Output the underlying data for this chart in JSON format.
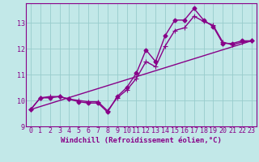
{
  "xlabel": "Windchill (Refroidissement éolien,°C)",
  "bg_color": "#c2e8e8",
  "line_color": "#880088",
  "grid_color": "#98cccc",
  "ylim": [
    9.0,
    13.75
  ],
  "xlim": [
    -0.5,
    23.5
  ],
  "yticks": [
    9,
    10,
    11,
    12,
    13
  ],
  "xticks": [
    0,
    1,
    2,
    3,
    4,
    5,
    6,
    7,
    8,
    9,
    10,
    11,
    12,
    13,
    14,
    15,
    16,
    17,
    18,
    19,
    20,
    21,
    22,
    23
  ],
  "series1_x": [
    0,
    1,
    2,
    3,
    4,
    5,
    6,
    7,
    8,
    9,
    10,
    11,
    12,
    13,
    14,
    15,
    16,
    17,
    18,
    19,
    20,
    21,
    22,
    23
  ],
  "series1_y": [
    9.65,
    10.1,
    10.1,
    10.15,
    10.05,
    9.95,
    9.9,
    9.9,
    9.55,
    10.15,
    10.5,
    11.05,
    11.95,
    11.5,
    12.5,
    13.1,
    13.1,
    13.55,
    13.1,
    12.85,
    12.2,
    12.2,
    12.3,
    12.3
  ],
  "series2_x": [
    0,
    1,
    2,
    3,
    4,
    5,
    6,
    7,
    8,
    9,
    10,
    11,
    12,
    13,
    14,
    15,
    16,
    17,
    18,
    19,
    20,
    21,
    22,
    23
  ],
  "series2_y": [
    9.65,
    10.1,
    10.15,
    10.15,
    10.05,
    10.0,
    9.95,
    9.95,
    9.6,
    10.1,
    10.4,
    10.85,
    11.5,
    11.3,
    12.1,
    12.7,
    12.8,
    13.25,
    13.05,
    12.9,
    12.25,
    12.15,
    12.25,
    12.3
  ],
  "series3_x": [
    0,
    23
  ],
  "series3_y": [
    9.65,
    12.3
  ],
  "marker_size": 2.5,
  "line_width": 1.0,
  "xlabel_fontsize": 6.5,
  "tick_fontsize": 6.0
}
